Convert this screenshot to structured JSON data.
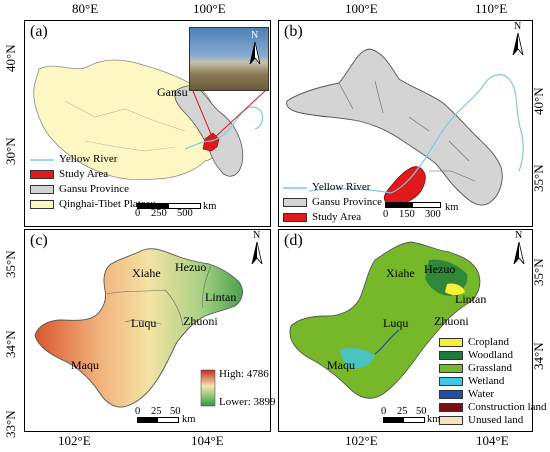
{
  "ticks": {
    "top_lon": [
      "80°E",
      "100°E",
      "100°E",
      "110°E"
    ],
    "bottom_lon": [
      "102°E",
      "104°E",
      "102°E",
      "104°E"
    ],
    "left_lat": [
      "40°N",
      "30°N",
      "35°N",
      "34°N",
      "33°N"
    ],
    "right_lat": [
      "40°N",
      "35°N",
      "35°N",
      "34°N"
    ]
  },
  "panels": {
    "a": {
      "label": "(a)",
      "places": [
        "Gansu"
      ],
      "legend": [
        {
          "label": "Yellow River",
          "type": "line",
          "color": "#7ec8e3"
        },
        {
          "label": "Study Area",
          "type": "fill",
          "color": "#e0191b"
        },
        {
          "label": "Gansu Province",
          "type": "fill",
          "color": "#d4d4d4"
        },
        {
          "label": "Qinghai-Tibet Plateau",
          "type": "fill",
          "color": "#fdf7c3"
        }
      ],
      "scale": [
        "0",
        "250",
        "500",
        "km"
      ]
    },
    "b": {
      "label": "(b)",
      "legend": [
        {
          "label": "Yellow River",
          "type": "line",
          "color": "#7ec8e3"
        },
        {
          "label": "Gansu Province",
          "type": "fill",
          "color": "#d4d4d4"
        },
        {
          "label": "Study Area",
          "type": "fill",
          "color": "#e0191b"
        }
      ],
      "scale": [
        "0",
        "150",
        "300",
        "km"
      ]
    },
    "c": {
      "label": "(c)",
      "places": [
        "Xiahe",
        "Hezuo",
        "Lintan",
        "Luqu",
        "Zhuoni",
        "Maqu"
      ],
      "elev_high": "High: 4786",
      "elev_low": "Lower: 3899",
      "scale": [
        "0",
        "25",
        "50",
        "km"
      ]
    },
    "d": {
      "label": "(d)",
      "places": [
        "Xiahe",
        "Hezuo",
        "Lintan",
        "Luqu",
        "Zhuoni",
        "Maqu"
      ],
      "legend": [
        {
          "label": "Cropland",
          "color": "#f5f03a"
        },
        {
          "label": "Woodland",
          "color": "#1e7a3c"
        },
        {
          "label": "Grassland",
          "color": "#76b82a"
        },
        {
          "label": "Wetland",
          "color": "#3ec7e6"
        },
        {
          "label": "Water",
          "color": "#1f4fa8"
        },
        {
          "label": "Construction land",
          "color": "#7a0f12"
        },
        {
          "label": "Unused land",
          "color": "#f6e3c0"
        }
      ],
      "scale": [
        "0",
        "25",
        "50",
        "km"
      ]
    }
  },
  "north_letter": "N"
}
